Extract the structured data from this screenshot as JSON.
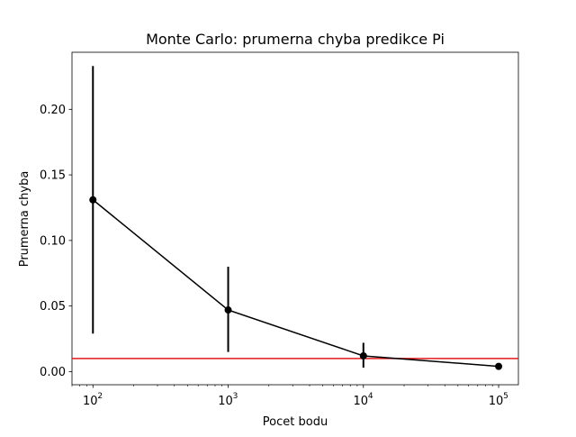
{
  "chart_data": {
    "type": "line",
    "title": "Monte Carlo: prumerna chyba predikce Pi",
    "xlabel": "Pocet bodu",
    "ylabel": "Prumerna chyba",
    "xscale": "log",
    "xlim": [
      70,
      140000
    ],
    "ylim": [
      -0.01,
      0.2435
    ],
    "grid": false,
    "x": [
      100,
      1000,
      10000,
      100000
    ],
    "x_tick_values": [
      100,
      1000,
      10000,
      100000
    ],
    "x_tick_labels": [
      {
        "base": "10",
        "exp": "2"
      },
      {
        "base": "10",
        "exp": "3"
      },
      {
        "base": "10",
        "exp": "4"
      },
      {
        "base": "10",
        "exp": "5"
      }
    ],
    "y_tick_values": [
      0.0,
      0.05,
      0.1,
      0.15,
      0.2
    ],
    "y_tick_labels": [
      "0.00",
      "0.05",
      "0.10",
      "0.15",
      "0.20"
    ],
    "series": [
      {
        "values": [
          0.131,
          0.047,
          0.012,
          0.004
        ],
        "error_low": [
          0.029,
          0.015,
          0.003,
          0.003
        ],
        "error_high": [
          0.233,
          0.08,
          0.022,
          0.006
        ],
        "color": "#000000",
        "marker": "circle"
      }
    ],
    "reference_line": {
      "y": 0.01,
      "color": "#e41a1c"
    }
  }
}
